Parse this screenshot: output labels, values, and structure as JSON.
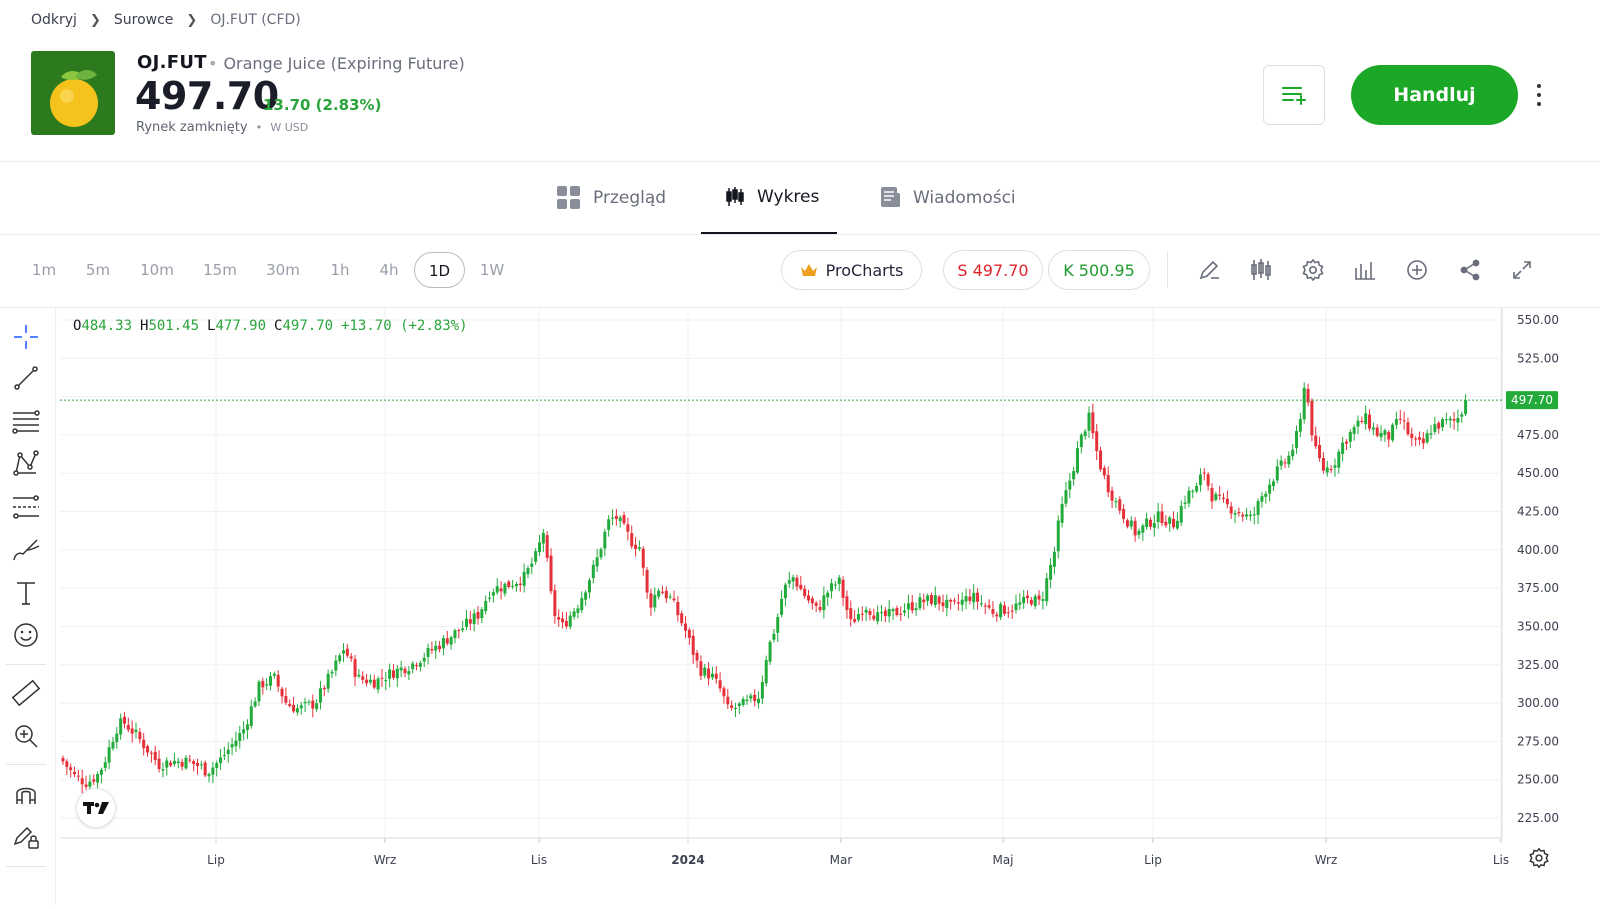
{
  "breadcrumb": [
    "Odkryj",
    "Surowce",
    "OJ.FUT (CFD)"
  ],
  "instrument": {
    "symbol": "OJ.FUT",
    "name": "Orange Juice (Expiring Future)",
    "price": "497.70",
    "change": "13.70 (2.83%)",
    "market_status": "Rynek zamknięty",
    "currency": "W USD"
  },
  "actions": {
    "trade_label": "Handluj"
  },
  "tabs": [
    {
      "label": "Przegląd",
      "icon": "grid-icon"
    },
    {
      "label": "Wykres",
      "icon": "candles-icon",
      "active": true
    },
    {
      "label": "Wiadomości",
      "icon": "news-icon"
    }
  ],
  "timeframes": [
    "1m",
    "5m",
    "10m",
    "15m",
    "30m",
    "1h",
    "4h",
    "1D",
    "1W"
  ],
  "active_timeframe": "1D",
  "toolbar": {
    "procharts_label": "ProCharts",
    "sell_label": "S 497.70",
    "buy_label": "K 500.95"
  },
  "ohlc": {
    "o": "484.33",
    "h": "501.45",
    "l": "477.90",
    "c": "497.70",
    "chg": "+13.70 (+2.83%)"
  },
  "colors": {
    "up": "#22ab3b",
    "down": "#e5303a",
    "accent": "#1ba826"
  },
  "chart_data": {
    "type": "candlestick",
    "y_ticks": [
      "550.00",
      "525.00",
      "500.00",
      "475.00",
      "450.00",
      "425.00",
      "400.00",
      "375.00",
      "350.00",
      "325.00",
      "300.00",
      "275.00",
      "250.00",
      "225.00"
    ],
    "x_ticks": [
      "Lip",
      "Wrz",
      "Lis",
      "2024",
      "Mar",
      "Maj",
      "Lip",
      "Wrz",
      "Lis"
    ],
    "last_price": 497.7,
    "last_price_label": "497.70",
    "ylim": [
      225,
      550
    ],
    "close_path": [
      [
        0,
        262
      ],
      [
        5,
        252
      ],
      [
        10,
        248
      ],
      [
        15,
        254
      ],
      [
        18,
        265
      ],
      [
        22,
        283
      ],
      [
        25,
        288
      ],
      [
        30,
        280
      ],
      [
        35,
        270
      ],
      [
        40,
        260
      ],
      [
        45,
        262
      ],
      [
        52,
        262
      ],
      [
        58,
        258
      ],
      [
        60,
        255
      ],
      [
        65,
        262
      ],
      [
        70,
        272
      ],
      [
        75,
        282
      ],
      [
        82,
        312
      ],
      [
        88,
        316
      ],
      [
        93,
        300
      ],
      [
        98,
        296
      ],
      [
        105,
        300
      ],
      [
        112,
        320
      ],
      [
        117,
        336
      ],
      [
        123,
        316
      ],
      [
        130,
        314
      ],
      [
        137,
        320
      ],
      [
        145,
        325
      ],
      [
        153,
        334
      ],
      [
        160,
        342
      ],
      [
        167,
        350
      ],
      [
        173,
        358
      ],
      [
        178,
        374
      ],
      [
        185,
        377
      ],
      [
        192,
        382
      ],
      [
        197,
        396
      ],
      [
        200,
        412
      ],
      [
        204,
        360
      ],
      [
        208,
        350
      ],
      [
        215,
        366
      ],
      [
        222,
        392
      ],
      [
        227,
        418
      ],
      [
        230,
        422
      ],
      [
        233,
        415
      ],
      [
        237,
        405
      ],
      [
        240,
        402
      ],
      [
        244,
        363
      ],
      [
        248,
        375
      ],
      [
        253,
        368
      ],
      [
        259,
        348
      ],
      [
        265,
        322
      ],
      [
        270,
        318
      ],
      [
        274,
        308
      ],
      [
        277,
        295
      ],
      [
        285,
        300
      ],
      [
        290,
        305
      ],
      [
        293,
        332
      ],
      [
        297,
        352
      ],
      [
        300,
        374
      ],
      [
        304,
        382
      ],
      [
        309,
        370
      ],
      [
        314,
        360
      ],
      [
        318,
        372
      ],
      [
        323,
        380
      ],
      [
        328,
        352
      ],
      [
        334,
        364
      ],
      [
        340,
        355
      ],
      [
        348,
        360
      ],
      [
        357,
        366
      ],
      [
        363,
        368
      ],
      [
        370,
        362
      ],
      [
        378,
        370
      ],
      [
        387,
        360
      ],
      [
        395,
        362
      ],
      [
        403,
        368
      ],
      [
        407,
        365
      ],
      [
        413,
        400
      ],
      [
        415,
        422
      ],
      [
        420,
        450
      ],
      [
        423,
        468
      ],
      [
        427,
        487
      ],
      [
        431,
        460
      ],
      [
        434,
        445
      ],
      [
        438,
        432
      ],
      [
        442,
        422
      ],
      [
        447,
        410
      ],
      [
        452,
        418
      ],
      [
        457,
        422
      ],
      [
        462,
        416
      ],
      [
        468,
        436
      ],
      [
        472,
        440
      ],
      [
        475,
        452
      ],
      [
        478,
        436
      ],
      [
        483,
        430
      ],
      [
        489,
        425
      ],
      [
        495,
        420
      ],
      [
        500,
        438
      ],
      [
        505,
        450
      ],
      [
        511,
        462
      ],
      [
        515,
        480
      ],
      [
        517,
        512
      ],
      [
        521,
        466
      ],
      [
        525,
        452
      ],
      [
        529,
        456
      ],
      [
        533,
        470
      ],
      [
        537,
        478
      ],
      [
        542,
        486
      ],
      [
        547,
        476
      ],
      [
        552,
        474
      ],
      [
        557,
        486
      ],
      [
        562,
        470
      ],
      [
        566,
        468
      ],
      [
        570,
        480
      ],
      [
        575,
        483
      ],
      [
        580,
        484
      ],
      [
        585,
        497.7
      ]
    ]
  }
}
